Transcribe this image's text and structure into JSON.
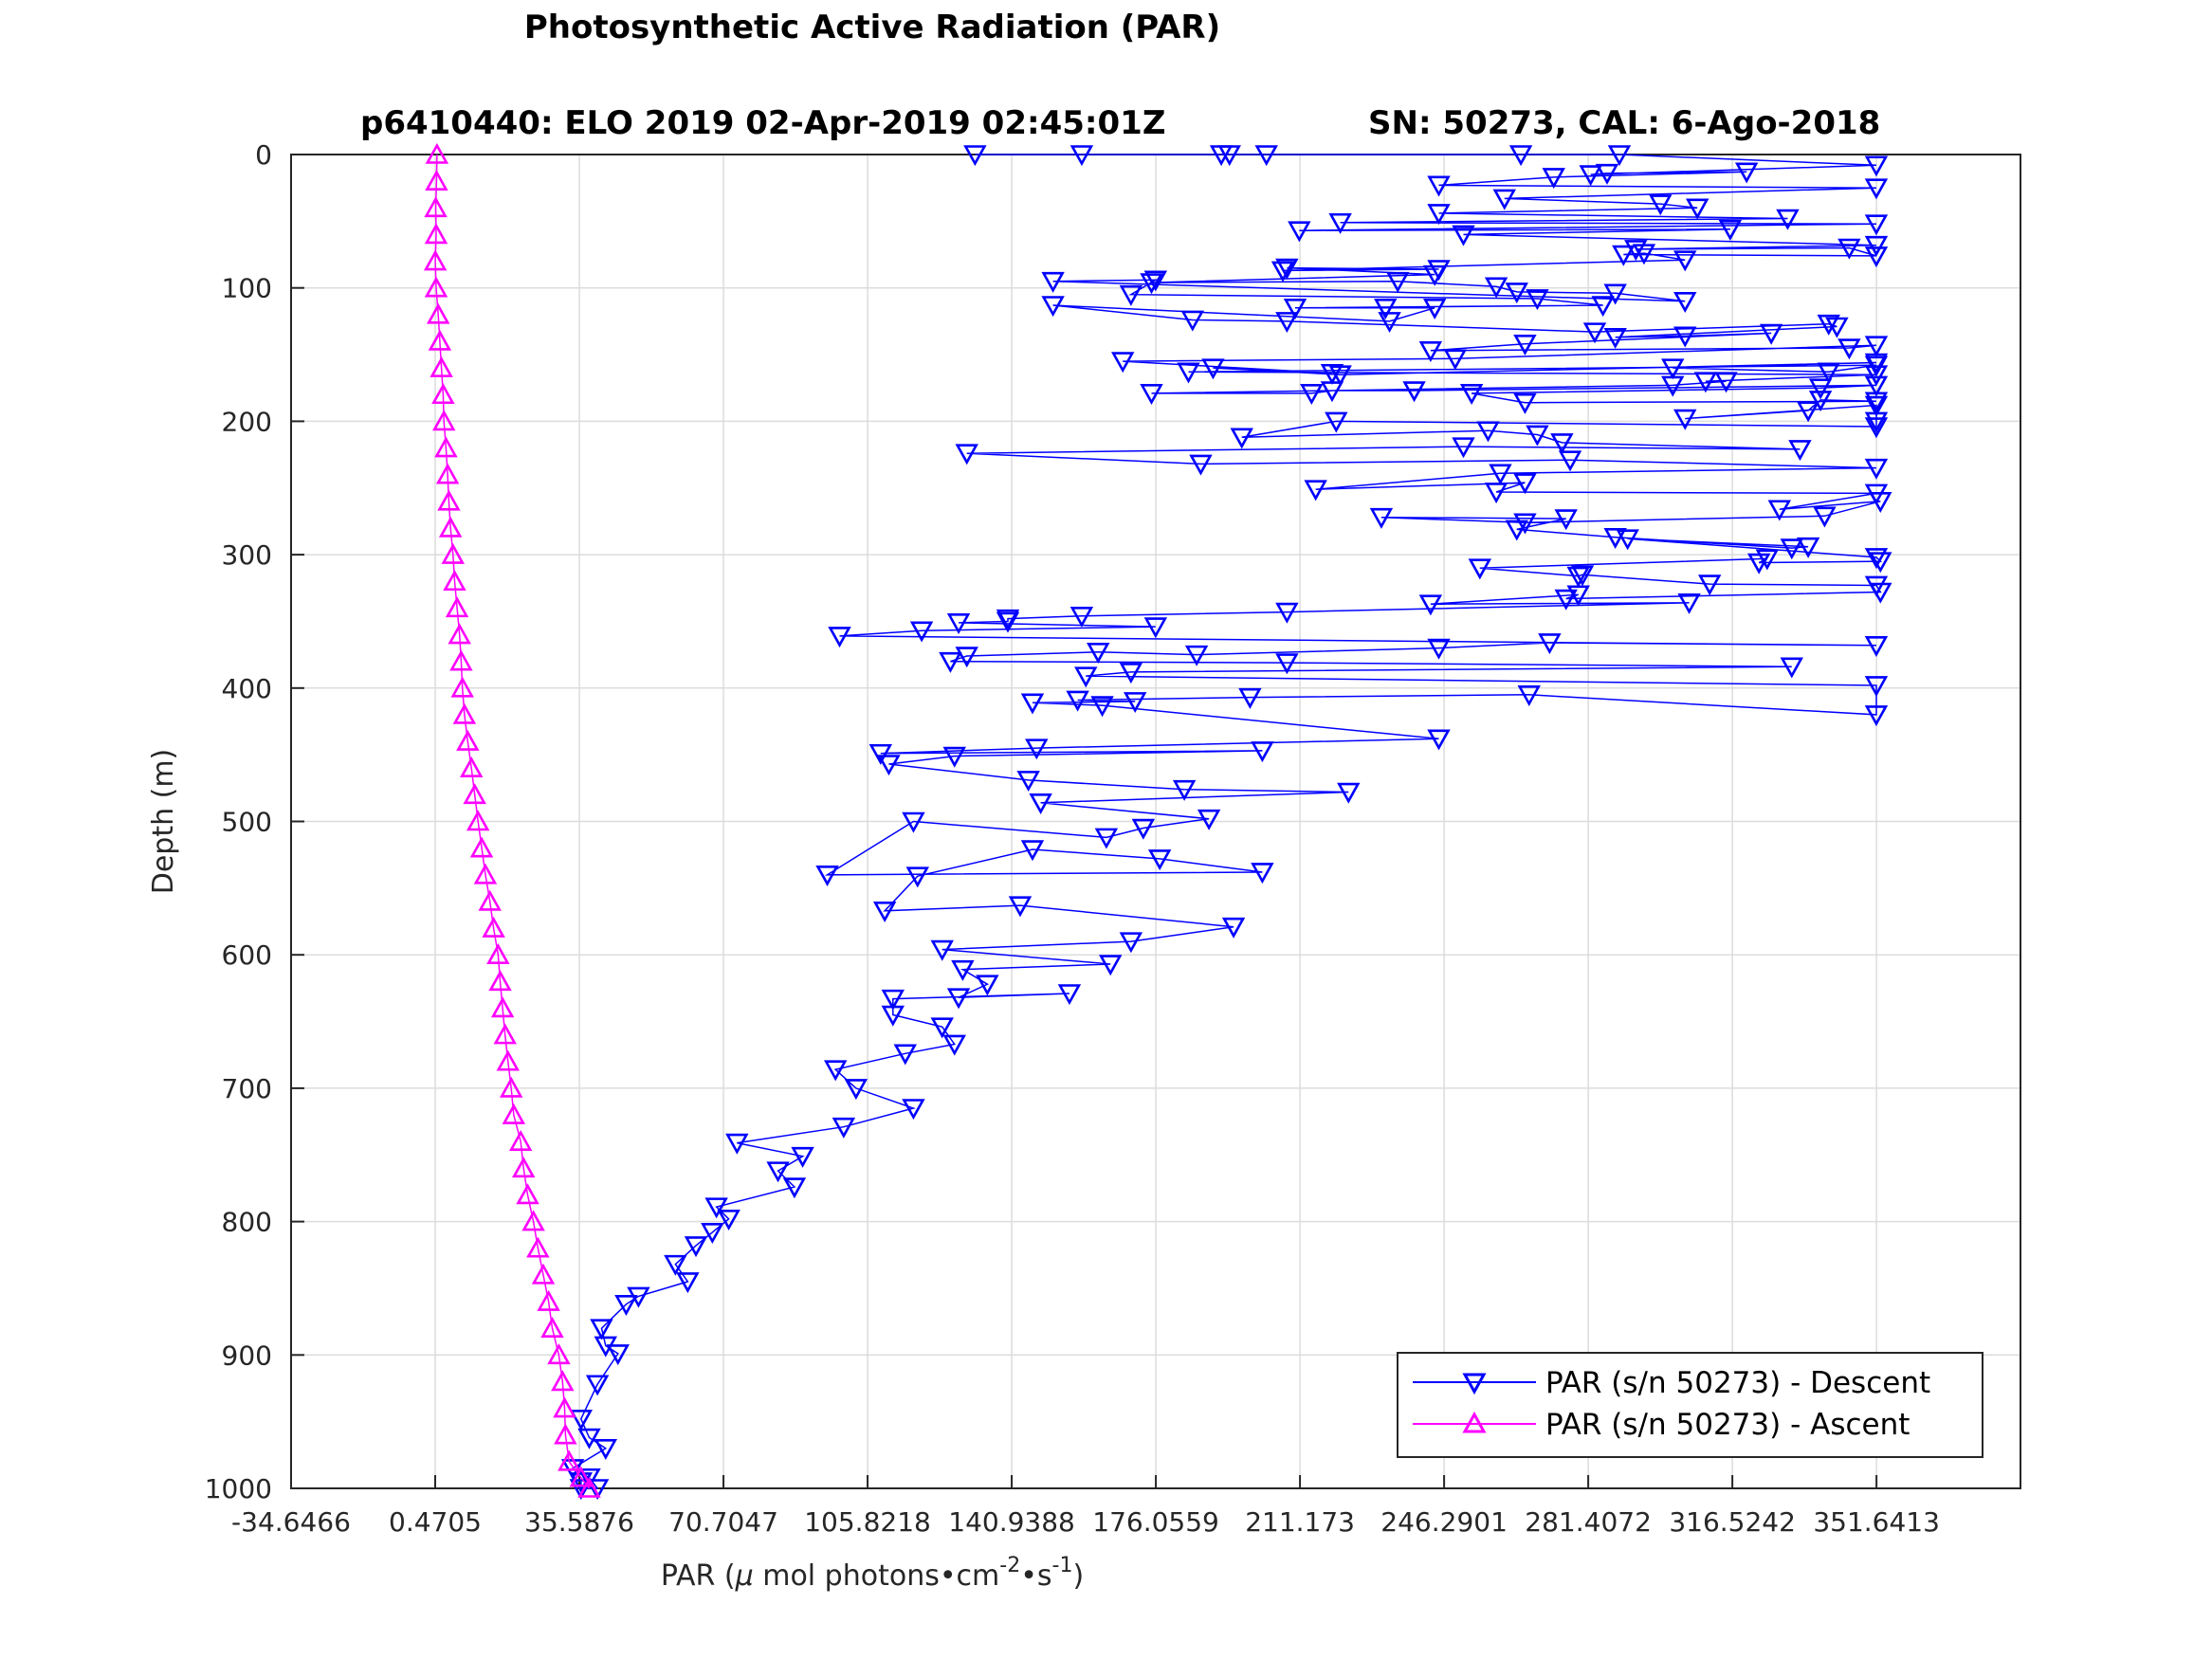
{
  "chart_data": {
    "type": "scatter",
    "title": "Photosynthetic Active Radiation (PAR)",
    "subtitle_left": "p6410440: ELO 2019 02-Apr-2019 02:45:01Z",
    "subtitle_right": "SN: 50273, CAL: 6-Ago-2018",
    "xlabel": {
      "prefix": "PAR (",
      "mu": "μ",
      "mid": " mol photons•cm",
      "exp1": "-2",
      "mid2": "•s",
      "exp2": "-1",
      "suffix": ")"
    },
    "ylabel": "Depth (m)",
    "xlim": [
      -34.6466,
      386.7236
    ],
    "ylim": [
      0,
      1000
    ],
    "y_reversed": true,
    "grid": true,
    "legend_position": "bottom-right",
    "x_ticks": [
      -34.6466,
      0.4705,
      35.5876,
      70.7047,
      105.8218,
      140.9388,
      176.0559,
      211.173,
      246.2901,
      281.4072,
      316.5242,
      351.6413
    ],
    "x_tick_labels": [
      "-34.6466",
      "0.4705",
      "35.5876",
      "70.7047",
      "105.8218",
      "140.9388",
      "176.0559",
      "211.173",
      "246.2901",
      "281.4072",
      "316.5242",
      "351.6413"
    ],
    "y_ticks": [
      0,
      100,
      200,
      300,
      400,
      500,
      600,
      700,
      800,
      900,
      1000
    ],
    "y_tick_labels": [
      "0",
      "100",
      "200",
      "300",
      "400",
      "500",
      "600",
      "700",
      "800",
      "900",
      "1000"
    ],
    "series": [
      {
        "name": "PAR (s/n 50273) - Descent",
        "color": "#0000ff",
        "marker": "triangle-down",
        "points": [
          [
            132,
            0
          ],
          [
            158,
            0
          ],
          [
            192,
            0
          ],
          [
            194,
            0
          ],
          [
            203,
            0
          ],
          [
            265,
            0
          ],
          [
            289,
            0
          ],
          [
            351.6,
            8
          ],
          [
            282,
            15
          ],
          [
            286,
            14
          ],
          [
            320,
            13
          ],
          [
            273,
            17
          ],
          [
            245,
            23
          ],
          [
            351.6,
            25
          ],
          [
            261,
            33
          ],
          [
            299,
            37
          ],
          [
            308,
            40
          ],
          [
            245,
            44
          ],
          [
            330,
            48
          ],
          [
            221,
            51
          ],
          [
            351.6,
            52
          ],
          [
            211,
            57
          ],
          [
            316,
            56
          ],
          [
            251,
            60
          ],
          [
            351.6,
            68
          ],
          [
            293,
            71
          ],
          [
            345,
            70
          ],
          [
            351.6,
            76
          ],
          [
            290,
            75
          ],
          [
            295,
            74
          ],
          [
            305,
            79
          ],
          [
            207,
            87
          ],
          [
            245,
            86
          ],
          [
            208,
            85
          ],
          [
            244,
            90
          ],
          [
            175,
            96
          ],
          [
            235,
            95
          ],
          [
            259,
            99
          ],
          [
            264,
            103
          ],
          [
            288,
            104
          ],
          [
            305,
            110
          ],
          [
            151,
            95
          ],
          [
            176,
            94
          ],
          [
            170,
            105
          ],
          [
            269,
            108
          ],
          [
            285,
            113
          ],
          [
            210,
            115
          ],
          [
            232,
            115
          ],
          [
            244,
            115
          ],
          [
            233,
            125
          ],
          [
            151,
            113
          ],
          [
            185,
            124
          ],
          [
            208,
            125
          ],
          [
            283,
            133
          ],
          [
            340,
            127
          ],
          [
            342,
            129
          ],
          [
            288,
            137
          ],
          [
            305,
            136
          ],
          [
            326,
            134
          ],
          [
            266,
            142
          ],
          [
            243,
            147
          ],
          [
            345,
            145
          ],
          [
            351.6,
            143
          ],
          [
            249,
            153
          ],
          [
            168,
            155
          ],
          [
            219,
            164
          ],
          [
            190,
            160
          ],
          [
            221,
            165
          ],
          [
            351.6,
            156
          ],
          [
            302,
            160
          ],
          [
            340,
            163
          ],
          [
            351.6,
            158
          ],
          [
            184,
            163
          ],
          [
            351.6,
            165
          ],
          [
            310,
            170
          ],
          [
            315,
            170
          ],
          [
            302,
            173
          ],
          [
            175,
            179
          ],
          [
            214,
            179
          ],
          [
            219,
            177
          ],
          [
            239,
            177
          ],
          [
            351.6,
            173
          ],
          [
            338,
            175
          ],
          [
            253,
            179
          ],
          [
            266,
            186
          ],
          [
            351.6,
            185
          ],
          [
            338,
            184
          ],
          [
            335,
            192
          ],
          [
            305,
            198
          ],
          [
            351.6,
            188
          ],
          [
            351.6,
            200
          ],
          [
            351.6,
            204
          ],
          [
            220,
            200
          ],
          [
            197,
            212
          ],
          [
            257,
            207
          ],
          [
            269,
            210
          ],
          [
            275,
            216
          ],
          [
            333,
            221
          ],
          [
            251,
            219
          ],
          [
            130,
            224
          ],
          [
            187,
            232
          ],
          [
            277,
            229
          ],
          [
            351.6,
            235
          ],
          [
            260,
            239
          ],
          [
            215,
            251
          ],
          [
            266,
            246
          ],
          [
            259,
            253
          ],
          [
            351.6,
            254
          ],
          [
            328,
            266
          ],
          [
            352.6,
            260
          ],
          [
            339,
            271
          ],
          [
            266,
            276
          ],
          [
            231,
            272
          ],
          [
            276,
            273
          ],
          [
            264,
            281
          ],
          [
            288,
            287
          ],
          [
            331,
            295
          ],
          [
            335,
            294
          ],
          [
            291,
            288
          ],
          [
            351.6,
            302
          ],
          [
            352.6,
            305
          ],
          [
            323,
            306
          ],
          [
            325,
            303
          ],
          [
            255,
            310
          ],
          [
            279,
            316
          ],
          [
            280,
            315
          ],
          [
            311,
            322
          ],
          [
            351.6,
            323
          ],
          [
            352.6,
            328
          ],
          [
            276,
            333
          ],
          [
            279,
            330
          ],
          [
            243,
            337
          ],
          [
            306,
            336
          ],
          [
            208,
            343
          ],
          [
            158,
            346
          ],
          [
            140,
            348
          ],
          [
            140,
            350
          ],
          [
            128,
            351
          ],
          [
            176,
            354
          ],
          [
            119,
            357
          ],
          [
            99,
            361
          ],
          [
            351.6,
            368
          ],
          [
            272,
            366
          ],
          [
            245,
            370
          ],
          [
            186,
            375
          ],
          [
            162,
            373
          ],
          [
            130,
            376
          ],
          [
            126,
            380
          ],
          [
            208,
            381
          ],
          [
            331,
            384
          ],
          [
            170,
            388
          ],
          [
            159,
            391
          ],
          [
            351.6,
            398
          ],
          [
            351.6,
            420
          ],
          [
            267,
            405
          ],
          [
            199,
            407
          ],
          [
            157,
            409
          ],
          [
            171,
            410
          ],
          [
            146,
            411
          ],
          [
            163,
            413
          ],
          [
            245,
            438
          ],
          [
            147,
            445
          ],
          [
            109,
            449
          ],
          [
            202,
            447
          ],
          [
            127,
            451
          ],
          [
            111,
            457
          ],
          [
            145,
            469
          ],
          [
            183,
            476
          ],
          [
            223,
            478
          ],
          [
            148,
            486
          ],
          [
            189,
            498
          ],
          [
            173,
            505
          ],
          [
            164,
            512
          ],
          [
            117,
            500
          ],
          [
            96,
            540
          ],
          [
            202,
            538
          ],
          [
            177,
            528
          ],
          [
            146,
            521
          ],
          [
            118,
            541
          ],
          [
            110,
            567
          ],
          [
            143,
            563
          ],
          [
            195,
            579
          ],
          [
            170,
            590
          ],
          [
            124,
            596
          ],
          [
            165,
            607
          ],
          [
            129,
            611
          ],
          [
            135,
            622
          ],
          [
            128,
            632
          ],
          [
            155,
            629
          ],
          [
            112,
            633
          ],
          [
            112,
            645
          ],
          [
            124,
            654
          ],
          [
            127,
            667
          ],
          [
            115,
            674
          ],
          [
            98,
            686
          ],
          [
            103,
            700
          ],
          [
            117,
            715
          ],
          [
            100,
            729
          ],
          [
            74,
            741
          ],
          [
            90,
            751
          ],
          [
            84,
            762
          ],
          [
            88,
            774
          ],
          [
            69,
            789
          ],
          [
            72,
            798
          ],
          [
            68,
            808
          ],
          [
            64,
            818
          ],
          [
            59,
            832
          ],
          [
            62,
            845
          ],
          [
            50,
            856
          ],
          [
            47,
            862
          ],
          [
            41,
            880
          ],
          [
            42,
            893
          ],
          [
            45,
            899
          ],
          [
            40,
            922
          ],
          [
            36,
            948
          ],
          [
            38,
            962
          ],
          [
            42,
            970
          ],
          [
            34,
            985
          ],
          [
            38,
            992
          ],
          [
            40,
            1000
          ],
          [
            36,
            1000
          ],
          [
            36,
            995
          ]
        ]
      },
      {
        "name": "PAR (s/n 50273) - Ascent",
        "color": "#ff00ff",
        "marker": "triangle-up",
        "points": [
          [
            0.9,
            0
          ],
          [
            0.8,
            20
          ],
          [
            0.6,
            40
          ],
          [
            0.7,
            60
          ],
          [
            0.5,
            80
          ],
          [
            0.7,
            100
          ],
          [
            1.2,
            120
          ],
          [
            1.6,
            140
          ],
          [
            2.0,
            160
          ],
          [
            2.4,
            180
          ],
          [
            2.6,
            200
          ],
          [
            3.1,
            220
          ],
          [
            3.5,
            240
          ],
          [
            3.8,
            260
          ],
          [
            4.2,
            280
          ],
          [
            4.8,
            300
          ],
          [
            5.2,
            320
          ],
          [
            5.8,
            340
          ],
          [
            6.4,
            360
          ],
          [
            6.8,
            380
          ],
          [
            7.1,
            400
          ],
          [
            7.6,
            420
          ],
          [
            8.4,
            440
          ],
          [
            9.3,
            460
          ],
          [
            10.1,
            480
          ],
          [
            10.9,
            500
          ],
          [
            11.8,
            520
          ],
          [
            12.7,
            540
          ],
          [
            13.8,
            560
          ],
          [
            14.7,
            580
          ],
          [
            15.8,
            600
          ],
          [
            16.3,
            620
          ],
          [
            16.9,
            640
          ],
          [
            17.5,
            660
          ],
          [
            18.2,
            680
          ],
          [
            19.0,
            700
          ],
          [
            19.6,
            720
          ],
          [
            21.3,
            740
          ],
          [
            22.0,
            760
          ],
          [
            23.0,
            780
          ],
          [
            24.4,
            800
          ],
          [
            25.5,
            820
          ],
          [
            26.8,
            840
          ],
          [
            28.1,
            860
          ],
          [
            29.0,
            880
          ],
          [
            30.6,
            900
          ],
          [
            31.5,
            920
          ],
          [
            32.0,
            940
          ],
          [
            32.2,
            960
          ],
          [
            33.1,
            980
          ],
          [
            36.0,
            992
          ],
          [
            38.0,
            1000
          ]
        ]
      }
    ]
  },
  "legend": {
    "descent_label": "PAR (s/n 50273) - Descent",
    "ascent_label": "PAR (s/n 50273) - Ascent"
  }
}
